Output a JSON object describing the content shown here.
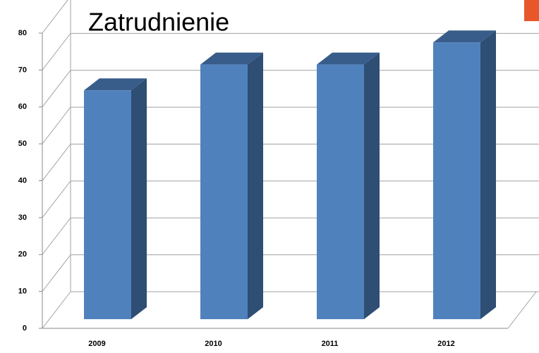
{
  "chart_data": {
    "type": "bar3d",
    "title": "Zatrudnienie",
    "categories": [
      "2009",
      "2010",
      "2011",
      "2012"
    ],
    "values": [
      62,
      69,
      69,
      75
    ],
    "color": "#4f81bd",
    "ylim": [
      0,
      80
    ],
    "yticks": [
      0,
      10,
      20,
      30,
      40,
      50,
      60,
      70,
      80
    ],
    "grid": true
  }
}
